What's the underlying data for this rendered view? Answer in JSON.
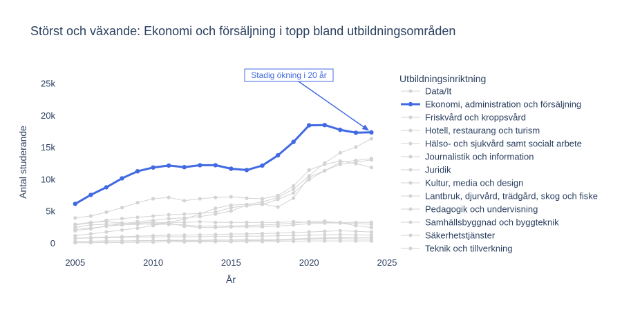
{
  "chart_data": {
    "type": "line",
    "title": "Störst och växande: Ekonomi och försäljning i topp bland utbildningsområden",
    "xlabel": "År",
    "ylabel": "Antal studerande",
    "xlim": [
      2004.3,
      2025
    ],
    "ylim": [
      -1000,
      27000
    ],
    "x_ticks": [
      2005,
      2010,
      2015,
      2020,
      2025
    ],
    "y_ticks": [
      0,
      5000,
      10000,
      15000,
      20000,
      25000
    ],
    "y_tick_labels": [
      "0",
      "5k",
      "10k",
      "15k",
      "20k",
      "25k"
    ],
    "grid": false,
    "legend_title": "Utbildningsinriktning",
    "legend_position": "right",
    "highlight_color": "#4169e1",
    "muted_color": "#d3d3d3",
    "annotation": {
      "text": "Stadig ökning i 20 år",
      "x": 2024,
      "y": 17400
    },
    "x": [
      2005,
      2006,
      2007,
      2008,
      2009,
      2010,
      2011,
      2012,
      2013,
      2014,
      2015,
      2016,
      2017,
      2018,
      2019,
      2020,
      2021,
      2022,
      2023,
      2024
    ],
    "series": [
      {
        "name": "Data/It",
        "highlight": false,
        "values": [
          2500,
          2900,
          3000,
          3100,
          3200,
          3300,
          3300,
          3300,
          3400,
          3300,
          3300,
          3300,
          3300,
          3300,
          3400,
          3300,
          3300,
          3300,
          3300,
          3300
        ]
      },
      {
        "name": "Ekonomi, administration och försäljning",
        "highlight": true,
        "values": [
          6200,
          7600,
          8800,
          10200,
          11300,
          11900,
          12200,
          11950,
          12250,
          12250,
          11700,
          11500,
          12200,
          13800,
          15900,
          18500,
          18550,
          17800,
          17350,
          17400
        ]
      },
      {
        "name": "Friskvård och kroppsvård",
        "highlight": false,
        "values": [
          300,
          350,
          400,
          400,
          450,
          450,
          500,
          500,
          500,
          550,
          550,
          600,
          600,
          600,
          700,
          800,
          850,
          900,
          900,
          950
        ]
      },
      {
        "name": "Hotell, restaurang och turism",
        "highlight": false,
        "values": [
          3000,
          3300,
          3400,
          3200,
          3100,
          3000,
          3000,
          2900,
          2700,
          2700,
          2700,
          2800,
          2900,
          3000,
          3200,
          3400,
          3500,
          3200,
          2800,
          2500
        ]
      },
      {
        "name": "Hälso- och sjukvård samt socialt arbete",
        "highlight": false,
        "values": [
          4000,
          4300,
          4900,
          5600,
          6400,
          7000,
          7200,
          6700,
          7000,
          7200,
          7300,
          7100,
          7000,
          7500,
          9000,
          11500,
          12400,
          12900,
          12500,
          11900
        ]
      },
      {
        "name": "Journalistik och information",
        "highlight": false,
        "values": [
          300,
          350,
          400,
          400,
          400,
          450,
          450,
          400,
          400,
          400,
          400,
          450,
          450,
          500,
          550,
          650,
          750,
          750,
          700,
          700
        ]
      },
      {
        "name": "Juridik",
        "highlight": false,
        "values": [
          800,
          900,
          1000,
          1050,
          1150,
          1200,
          1300,
          1300,
          1350,
          1400,
          1450,
          1500,
          1550,
          1600,
          1700,
          1800,
          1900,
          2000,
          1900,
          1800
        ]
      },
      {
        "name": "Kultur, media och design",
        "highlight": false,
        "values": [
          2200,
          2400,
          2700,
          2900,
          3000,
          3100,
          3200,
          2700,
          2500,
          2500,
          2600,
          2600,
          2600,
          2700,
          2900,
          3100,
          3200,
          3200,
          3100,
          3000
        ]
      },
      {
        "name": "Lantbruk, djurvård, trädgård, skog och fiske",
        "highlight": false,
        "values": [
          800,
          850,
          900,
          950,
          1000,
          1000,
          1050,
          1050,
          1050,
          1100,
          1100,
          1150,
          1150,
          1200,
          1250,
          1300,
          1350,
          1400,
          1350,
          1300
        ]
      },
      {
        "name": "Pedagogik och undervisning",
        "highlight": false,
        "values": [
          2000,
          2300,
          2700,
          3100,
          3400,
          3600,
          3900,
          4000,
          4200,
          4600,
          5100,
          6000,
          6100,
          6900,
          7900,
          10000,
          11400,
          12400,
          12700,
          13100
        ]
      },
      {
        "name": "Samhällsbyggnad och byggteknik",
        "highlight": false,
        "values": [
          1200,
          1500,
          1800,
          2100,
          2400,
          2800,
          3300,
          3800,
          4600,
          5500,
          6000,
          6100,
          6500,
          7200,
          8500,
          10600,
          12600,
          14200,
          15100,
          16400
        ]
      },
      {
        "name": "Säkerhetstjänster",
        "highlight": false,
        "values": [
          100,
          120,
          150,
          150,
          200,
          200,
          250,
          250,
          250,
          300,
          300,
          300,
          300,
          350,
          350,
          400,
          400,
          400,
          400,
          400
        ]
      },
      {
        "name": "Teknik och tillverkning",
        "highlight": false,
        "values": [
          2900,
          3200,
          3600,
          3900,
          4100,
          4300,
          4500,
          4600,
          4700,
          4900,
          5600,
          5900,
          6200,
          5700,
          7100,
          10400,
          11400,
          12700,
          13000,
          13300
        ]
      }
    ]
  }
}
